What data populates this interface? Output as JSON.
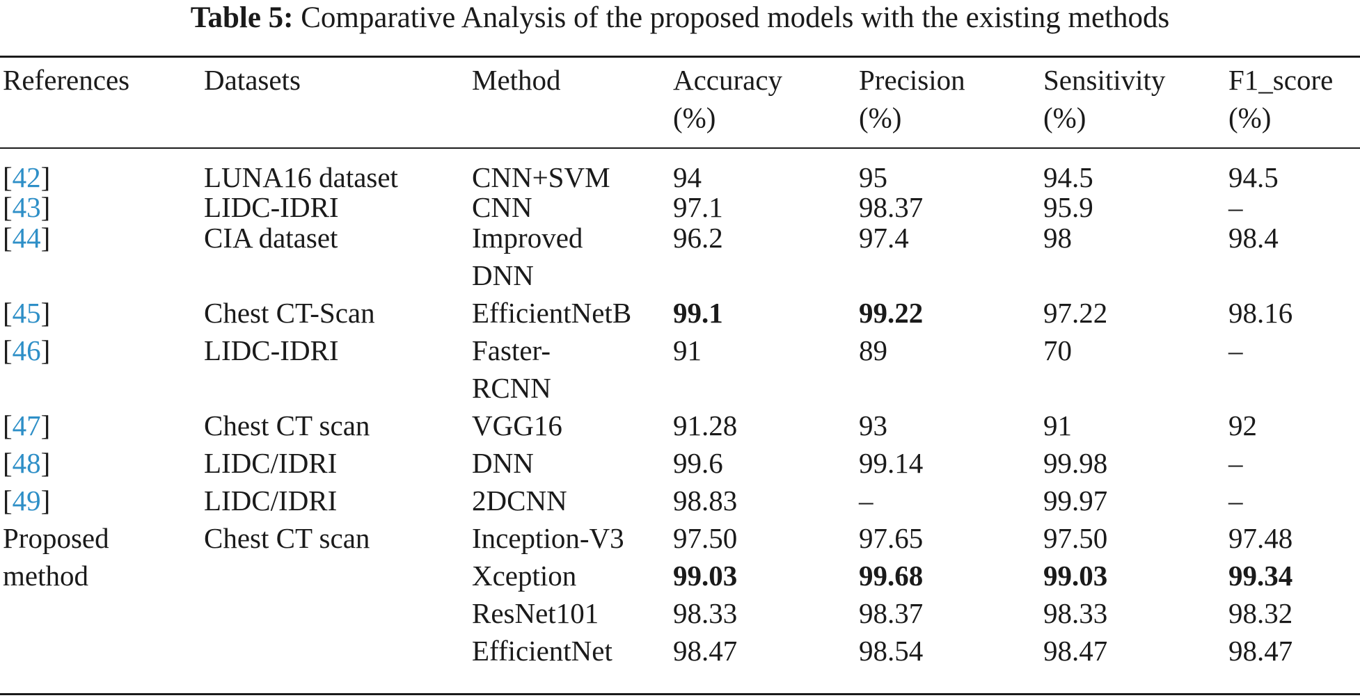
{
  "caption": {
    "label": "Table 5:",
    "text": "Comparative Analysis of the proposed models with the existing methods"
  },
  "header": {
    "references": "References",
    "datasets": "Datasets",
    "method": "Method",
    "accuracy": [
      "Accuracy",
      "(%)"
    ],
    "precision": [
      "Precision",
      "(%)"
    ],
    "sensitivity": [
      "Sensitivity",
      "(%)"
    ],
    "f1_score": [
      "F1_score",
      "(%)"
    ]
  },
  "rows": [
    {
      "ref_open": "[",
      "ref": "42",
      "ref_close": "]",
      "dataset": "LUNA16 dataset",
      "method": [
        "CNN+SVM"
      ],
      "accuracy": "94",
      "precision": "95",
      "sensitivity": "94.5",
      "f1_score": "94.5"
    },
    {
      "ref_open": "[",
      "ref": "43",
      "ref_close": "]",
      "dataset": "LIDC-IDRI",
      "method": [
        "CNN"
      ],
      "accuracy": "97.1",
      "precision": "98.37",
      "sensitivity": "95.9",
      "f1_score": "–"
    },
    {
      "ref_open": "[",
      "ref": "44",
      "ref_close": "]",
      "dataset": "CIA dataset",
      "method": [
        "Improved",
        "DNN"
      ],
      "accuracy": "96.2",
      "precision": "97.4",
      "sensitivity": "98",
      "f1_score": "98.4"
    },
    {
      "ref_open": "[",
      "ref": "45",
      "ref_close": "]",
      "dataset": "Chest CT-Scan",
      "method": [
        "EfficientNetB"
      ],
      "accuracy": "99.1",
      "precision": "99.22",
      "sensitivity": "97.22",
      "f1_score": "98.16"
    },
    {
      "ref_open": "[",
      "ref": "46",
      "ref_close": "]",
      "dataset": "LIDC-IDRI",
      "method": [
        "Faster-",
        "RCNN"
      ],
      "accuracy": "91",
      "precision": "89",
      "sensitivity": "70",
      "f1_score": "–"
    },
    {
      "ref_open": "[",
      "ref": "47",
      "ref_close": "]",
      "dataset": "Chest CT scan",
      "method": [
        "VGG16"
      ],
      "accuracy": "91.28",
      "precision": "93",
      "sensitivity": "91",
      "f1_score": "92"
    },
    {
      "ref_open": "[",
      "ref": "48",
      "ref_close": "]",
      "dataset": "LIDC/IDRI",
      "method": [
        "DNN"
      ],
      "accuracy": "99.6",
      "precision": "99.14",
      "sensitivity": "99.98",
      "f1_score": "–"
    },
    {
      "ref_open": "[",
      "ref": "49",
      "ref_close": "]",
      "dataset": "LIDC/IDRI",
      "method": [
        "2DCNN"
      ],
      "accuracy": "98.83",
      "precision": "–",
      "sensitivity": "99.97",
      "f1_score": "–"
    }
  ],
  "proposed": {
    "label": [
      "Proposed",
      "method"
    ],
    "dataset": "Chest CT scan",
    "rows": [
      {
        "method": "Inception-V3",
        "accuracy": "97.50",
        "precision": "97.65",
        "sensitivity": "97.50",
        "f1_score": "97.48"
      },
      {
        "method": "Xception",
        "accuracy": "99.03",
        "precision": "99.68",
        "sensitivity": "99.03",
        "f1_score": "99.34"
      },
      {
        "method": "ResNet101",
        "accuracy": "98.33",
        "precision": "98.37",
        "sensitivity": "98.33",
        "f1_score": "98.32"
      },
      {
        "method": "EfficientNet",
        "accuracy": "98.47",
        "precision": "98.54",
        "sensitivity": "98.47",
        "f1_score": "98.47"
      }
    ]
  }
}
